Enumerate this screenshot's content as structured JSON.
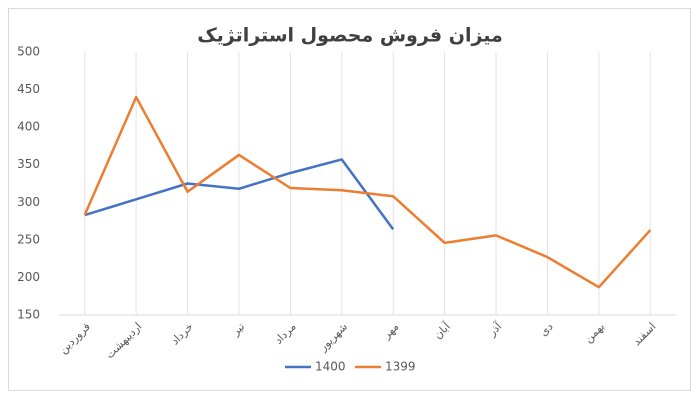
{
  "chart_data": {
    "type": "line",
    "title": "میزان فروش محصول استراتژیک",
    "categories": [
      "فروردین",
      "اردیبهشت",
      "خرداد",
      "تیر",
      "مرداد",
      "شهریور",
      "مهر",
      "آبان",
      "آذر",
      "دی",
      "بهمن",
      "اسفند"
    ],
    "series": [
      {
        "name": "1400",
        "color": "#4472c4",
        "values": [
          283,
          304,
          325,
          318,
          339,
          357,
          264,
          null,
          null,
          null,
          null,
          null
        ]
      },
      {
        "name": "1399",
        "color": "#ed7d31",
        "values": [
          283,
          440,
          314,
          363,
          319,
          316,
          308,
          246,
          256,
          227,
          187,
          263
        ]
      }
    ],
    "ylim": [
      150,
      500
    ],
    "yticks": [
      150,
      200,
      250,
      300,
      350,
      400,
      450,
      500
    ],
    "grid": "x",
    "legend": "bottom"
  }
}
